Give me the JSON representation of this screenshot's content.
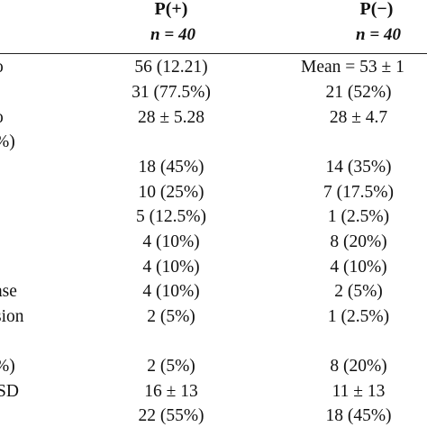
{
  "header": {
    "col_pos": "P(+)",
    "col_neg": "P(−)",
    "n_pos": "n = 40",
    "n_neg": "n = 40"
  },
  "rows": [
    {
      "label": "o",
      "pos": "56 (12.21)",
      "neg": "Mean = 53 ± 1"
    },
    {
      "label": "",
      "pos": "31 (77.5%)",
      "neg": "21 (52%)"
    },
    {
      "label": "o",
      "pos": "28 ± 5.28",
      "neg": "28 ± 4.7"
    },
    {
      "label": "%)",
      "pos": "",
      "neg": ""
    },
    {
      "label": "",
      "pos": "18 (45%)",
      "neg": "14 (35%)"
    },
    {
      "label": "",
      "pos": "10 (25%)",
      "neg": "7 (17.5%)"
    },
    {
      "label": "",
      "pos": "5 (12.5%)",
      "neg": "1 (2.5%)"
    },
    {
      "label": "",
      "pos": "4 (10%)",
      "neg": "8 (20%)"
    },
    {
      "label": "",
      "pos": "4 (10%)",
      "neg": "4 (10%)"
    },
    {
      "label": "ase",
      "pos": "4 (10%)",
      "neg": "2 (5%)"
    },
    {
      "label": "sion",
      "pos": "2 (5%)",
      "neg": "1 (2.5%)"
    },
    {
      "label": "",
      "pos": "",
      "neg": ""
    },
    {
      "label": "%)",
      "pos": "2 (5%)",
      "neg": "8 (20%)"
    },
    {
      "label": "SD",
      "pos": "16 ± 13",
      "neg": "11 ± 13"
    },
    {
      "label": "",
      "pos": "22 (55%)",
      "neg": "18 (45%)"
    }
  ]
}
